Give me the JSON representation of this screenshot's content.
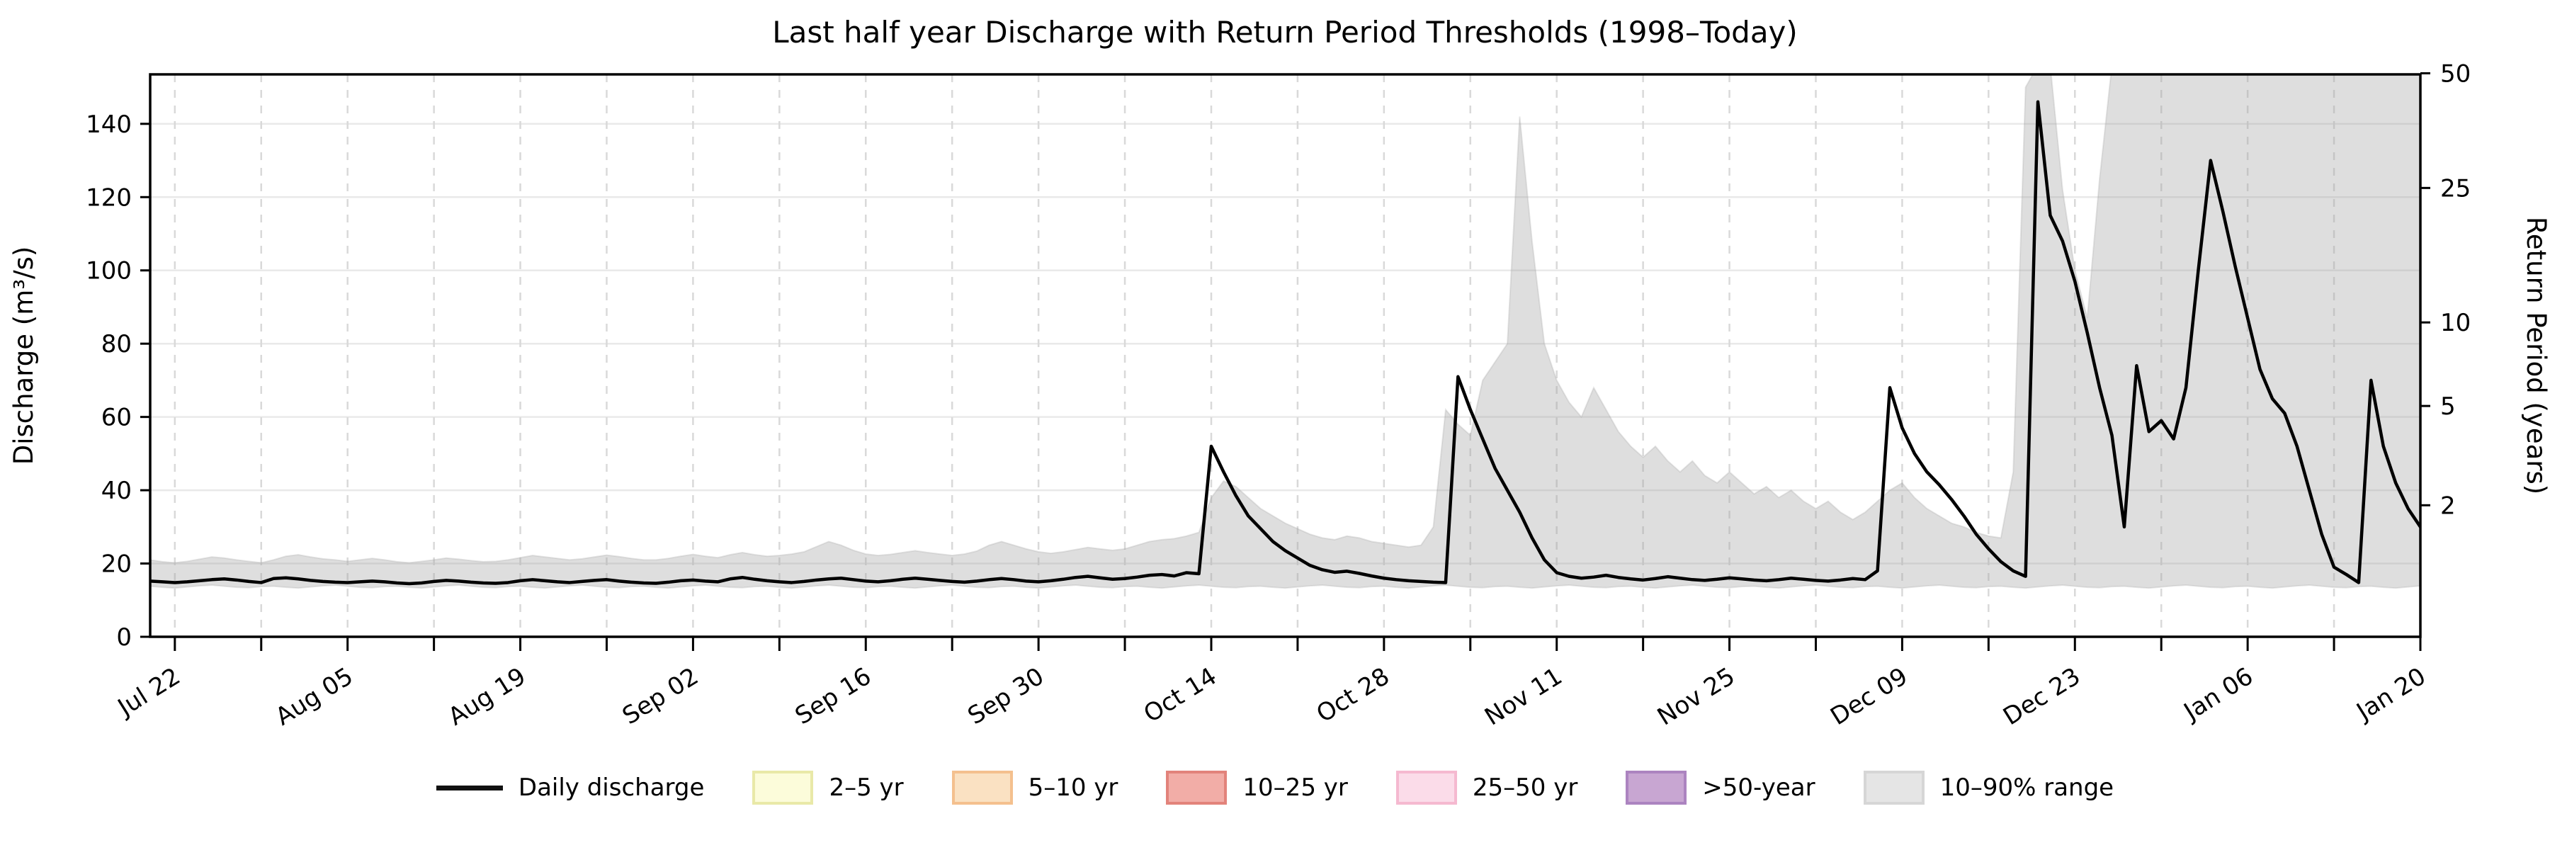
{
  "title": "Last half year Discharge with Return Period Thresholds (1998–Today)",
  "axes": {
    "y_left_label": "Discharge (m³/s)",
    "y_right_label": "Return Period (years)",
    "y_left_ticks": [
      0,
      20,
      40,
      60,
      80,
      100,
      120,
      140
    ],
    "x_tick_labels": [
      "Jul 22",
      "Aug 05",
      "Aug 19",
      "Sep 02",
      "Sep 16",
      "Sep 30",
      "Oct 14",
      "Oct 28",
      "Nov 11",
      "Nov 25",
      "Dec 09",
      "Dec 23",
      "Jan 06",
      "Jan 20"
    ]
  },
  "chart_data": {
    "type": "line",
    "title": "Last half year Discharge with Return Period Thresholds (1998–Today)",
    "xlabel": "",
    "ylabel": "Discharge (m³/s)",
    "y2label": "Return Period (years)",
    "x_start": "Jul 20",
    "x_end": "Jan 20",
    "x_total_days": 184,
    "x_first_tick_day": 2,
    "x_major_step_days": 14,
    "x_minor_step_days": 7,
    "ylim": [
      0,
      153.5
    ],
    "grid": true,
    "y_left_ticks": [
      0,
      20,
      40,
      60,
      80,
      100,
      120,
      140
    ],
    "x_tick_labels": [
      "Jul 22",
      "Aug 05",
      "Aug 19",
      "Sep 02",
      "Sep 16",
      "Sep 30",
      "Oct 14",
      "Oct 28",
      "Nov 11",
      "Nov 25",
      "Dec 09",
      "Dec 23",
      "Jan 06",
      "Jan 20"
    ],
    "y_right_ticks": [
      {
        "label": "50",
        "discharge_equivalent": 153.8
      },
      {
        "label": "25",
        "discharge_equivalent": 122.5
      },
      {
        "label": "10",
        "discharge_equivalent": 85.8
      },
      {
        "label": "5",
        "discharge_equivalent": 63.0
      },
      {
        "label": "2",
        "discharge_equivalent": 35.9
      }
    ],
    "legend": [
      {
        "label": "Daily discharge",
        "type": "line",
        "color": "#111111"
      },
      {
        "label": "2–5 yr",
        "type": "patch",
        "fill": "#fcfcda",
        "stroke": "#e9e9a8"
      },
      {
        "label": "5–10 yr",
        "type": "patch",
        "fill": "#fae1c2",
        "stroke": "#f4c08e"
      },
      {
        "label": "10–25 yr",
        "type": "patch",
        "fill": "#f2ada7",
        "stroke": "#e2837b"
      },
      {
        "label": "25–50 yr",
        "type": "patch",
        "fill": "#fbdce9",
        "stroke": "#f5b9d0"
      },
      {
        "label": ">50-year",
        "type": "patch",
        "fill": "#c8a6d2",
        "stroke": "#ac84c0"
      },
      {
        "label": "10–90% range",
        "type": "patch",
        "fill": "#e5e5e5",
        "stroke": "#d6d6d6"
      }
    ],
    "series": [
      {
        "name": "Daily discharge",
        "values": [
          15.2,
          15.0,
          14.8,
          15.0,
          15.3,
          15.6,
          15.8,
          15.5,
          15.1,
          14.8,
          15.9,
          16.1,
          15.8,
          15.4,
          15.1,
          14.9,
          14.8,
          15.0,
          15.2,
          15.0,
          14.7,
          14.5,
          14.7,
          15.1,
          15.4,
          15.2,
          14.9,
          14.7,
          14.6,
          14.8,
          15.3,
          15.6,
          15.3,
          15.0,
          14.8,
          15.1,
          15.4,
          15.6,
          15.2,
          14.9,
          14.7,
          14.6,
          14.9,
          15.3,
          15.5,
          15.2,
          15.0,
          15.8,
          16.2,
          15.7,
          15.3,
          15.0,
          14.8,
          15.1,
          15.5,
          15.8,
          16.0,
          15.6,
          15.2,
          15.0,
          15.3,
          15.7,
          16.0,
          15.7,
          15.4,
          15.1,
          14.9,
          15.2,
          15.6,
          15.9,
          15.6,
          15.2,
          15.0,
          15.3,
          15.7,
          16.2,
          16.5,
          16.1,
          15.7,
          15.9,
          16.3,
          16.8,
          17.0,
          16.6,
          17.5,
          17.2,
          52.0,
          45.0,
          38.5,
          33.0,
          29.5,
          26.0,
          23.5,
          21.5,
          19.5,
          18.3,
          17.6,
          17.9,
          17.3,
          16.6,
          16.0,
          15.6,
          15.3,
          15.1,
          14.9,
          14.8,
          71.0,
          62.0,
          54.0,
          46.0,
          40.0,
          34.0,
          27.0,
          21.0,
          17.5,
          16.5,
          16.0,
          16.3,
          16.8,
          16.2,
          15.8,
          15.5,
          15.9,
          16.4,
          16.0,
          15.6,
          15.4,
          15.7,
          16.1,
          15.8,
          15.5,
          15.3,
          15.6,
          16.0,
          15.7,
          15.4,
          15.2,
          15.5,
          15.9,
          15.6,
          18.0,
          68.0,
          57.0,
          50.0,
          45.0,
          41.5,
          37.5,
          33.0,
          28.0,
          24.0,
          20.5,
          18.0,
          16.5,
          146.0,
          115.0,
          108.0,
          97.0,
          83.0,
          68.0,
          55.0,
          30.0,
          74.0,
          56.0,
          59.0,
          54.0,
          68.0,
          100.0,
          130.0,
          116.0,
          101.0,
          87.0,
          73.0,
          65.0,
          61.0,
          52.0,
          40.0,
          28.0,
          19.0,
          17.0,
          14.8,
          70.0,
          52.0,
          42.0,
          35.0,
          30.0
        ]
      },
      {
        "name": "10–90% range upper",
        "values": [
          21.0,
          20.5,
          20.2,
          20.6,
          21.2,
          21.8,
          21.5,
          21.0,
          20.6,
          20.2,
          21.0,
          22.0,
          22.4,
          21.8,
          21.3,
          21.0,
          20.6,
          21.0,
          21.4,
          21.0,
          20.5,
          20.2,
          20.6,
          21.0,
          21.5,
          21.2,
          20.8,
          20.5,
          20.6,
          21.0,
          21.6,
          22.2,
          21.8,
          21.4,
          21.0,
          21.3,
          21.8,
          22.3,
          21.9,
          21.4,
          21.0,
          21.0,
          21.4,
          22.0,
          22.5,
          22.0,
          21.6,
          22.4,
          23.0,
          22.4,
          22.0,
          22.2,
          22.6,
          23.2,
          24.6,
          26.0,
          25.0,
          23.6,
          22.6,
          22.2,
          22.5,
          23.0,
          23.5,
          23.0,
          22.6,
          22.2,
          22.6,
          23.4,
          25.0,
          26.0,
          25.0,
          24.0,
          23.2,
          22.8,
          23.2,
          23.8,
          24.4,
          24.0,
          23.6,
          24.0,
          25.0,
          26.0,
          26.5,
          26.8,
          27.5,
          28.5,
          38.0,
          42.5,
          41.0,
          38.0,
          35.0,
          33.0,
          31.0,
          29.5,
          28.0,
          27.0,
          26.5,
          27.5,
          27.0,
          26.0,
          25.5,
          25.0,
          24.5,
          25.0,
          30.0,
          62.0,
          58.0,
          55.0,
          70.0,
          75.0,
          80.0,
          142.0,
          108.0,
          80.0,
          70.0,
          64.0,
          60.0,
          68.0,
          62.0,
          56.0,
          52.0,
          49.0,
          52.0,
          48.0,
          45.0,
          48.0,
          44.0,
          42.0,
          45.0,
          42.0,
          39.0,
          41.0,
          38.0,
          40.0,
          37.0,
          35.0,
          37.0,
          34.0,
          32.0,
          34.0,
          37.0,
          40.0,
          42.0,
          38.0,
          35.0,
          33.0,
          31.0,
          30.0,
          28.5,
          27.5,
          27.0,
          45.0,
          150.0,
          156.0,
          156.0,
          122.0,
          100.0,
          87.0,
          125.0,
          156.0,
          156.0,
          156.0,
          156.0,
          156.0,
          156.0,
          156.0,
          156.0,
          156.0,
          156.0,
          156.0,
          156.0,
          156.0,
          156.0,
          156.0,
          156.0,
          156.0,
          156.0,
          156.0,
          156.0,
          156.0,
          156.0,
          156.0,
          156.0,
          156.0,
          156.0
        ]
      },
      {
        "name": "10–90% range lower",
        "values": [
          13.8,
          13.5,
          13.3,
          13.6,
          13.9,
          14.1,
          13.8,
          13.5,
          13.4,
          13.7,
          13.8,
          13.5,
          13.3,
          13.6,
          13.9,
          14.1,
          13.8,
          13.5,
          13.4,
          13.7,
          13.8,
          13.5,
          13.3,
          13.6,
          13.9,
          14.1,
          13.8,
          13.5,
          13.4,
          13.7,
          13.8,
          13.5,
          13.3,
          13.6,
          13.9,
          14.1,
          13.8,
          13.5,
          13.4,
          13.7,
          13.8,
          13.5,
          13.3,
          13.6,
          13.9,
          14.1,
          13.8,
          13.5,
          13.4,
          13.7,
          13.8,
          13.5,
          13.3,
          13.6,
          13.9,
          14.1,
          13.8,
          13.5,
          13.4,
          13.7,
          13.8,
          13.5,
          13.3,
          13.6,
          13.9,
          14.1,
          13.8,
          13.5,
          13.4,
          13.7,
          13.8,
          13.5,
          13.3,
          13.6,
          13.9,
          14.1,
          13.8,
          13.5,
          13.4,
          13.7,
          13.8,
          13.5,
          13.3,
          13.6,
          13.9,
          14.1,
          13.8,
          13.5,
          13.4,
          13.7,
          13.8,
          13.5,
          13.3,
          13.6,
          13.9,
          14.1,
          13.8,
          13.5,
          13.4,
          13.7,
          13.8,
          13.5,
          13.3,
          13.6,
          13.9,
          14.1,
          13.8,
          13.5,
          13.4,
          13.7,
          13.8,
          13.5,
          13.3,
          13.6,
          13.9,
          14.1,
          13.8,
          13.5,
          13.4,
          13.7,
          13.8,
          13.5,
          13.3,
          13.6,
          13.9,
          14.1,
          13.8,
          13.5,
          13.4,
          13.7,
          13.8,
          13.5,
          13.3,
          13.6,
          13.9,
          14.1,
          13.8,
          13.5,
          13.4,
          13.7,
          13.8,
          13.5,
          13.3,
          13.6,
          13.9,
          14.1,
          13.8,
          13.5,
          13.4,
          13.7,
          13.8,
          13.5,
          13.3,
          13.6,
          13.9,
          14.1,
          13.8,
          13.5,
          13.4,
          13.7,
          13.8,
          13.5,
          13.3,
          13.6,
          13.9,
          14.1,
          13.8,
          13.5,
          13.4,
          13.7,
          13.8,
          13.5,
          13.3,
          13.6,
          13.9,
          14.1,
          13.8,
          13.5,
          13.4,
          13.7,
          13.8,
          13.5,
          13.3,
          13.6,
          13.9
        ]
      }
    ]
  }
}
